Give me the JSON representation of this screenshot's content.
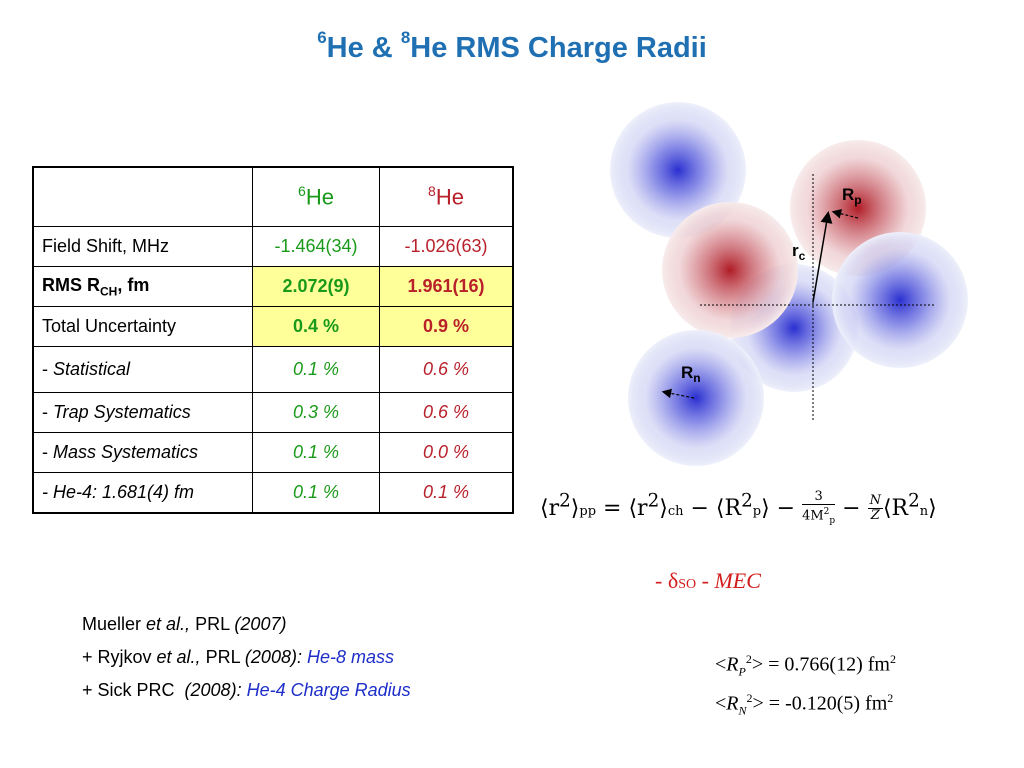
{
  "title": {
    "sup1": "6",
    "part1": "He & ",
    "sup2": "8",
    "part2": "He RMS Charge Radii"
  },
  "table": {
    "header": {
      "he6_sup": "6",
      "he6": "He",
      "he8_sup": "8",
      "he8": "He"
    },
    "rows": [
      {
        "label": "Field Shift, MHz",
        "he6": "-1.464(34)",
        "he8": "-1.026(63)"
      },
      {
        "label_pre": "RMS R",
        "label_sub": "CH",
        "label_post": ", fm",
        "he6": "2.072(9)",
        "he8": "1.961(16)"
      },
      {
        "label": "Total Uncertainty",
        "he6": "0.4 %",
        "he8": "0.9 %"
      },
      {
        "label_dash": "- ",
        "label": "Statistical",
        "he6": "0.1 %",
        "he8": "0.6 %"
      },
      {
        "label_dash": "- ",
        "label": "Trap Systematics",
        "he6": "0.3 %",
        "he8": "0.6 %"
      },
      {
        "label_dash": "- ",
        "label": "Mass Systematics",
        "he6": "0.1 %",
        "he8": "0.0 %"
      },
      {
        "label": "- He-4: 1.681(4) fm",
        "he6": "0.1 %",
        "he8": "0.1 %"
      }
    ]
  },
  "diagram": {
    "rp_main": "R",
    "rp_sub": "p",
    "rc_main": "r",
    "rc_sub": "c",
    "rn_main": "R",
    "rn_sub": "n",
    "colors": {
      "proton": "#b01c26",
      "neutron": "#2a2fd0"
    }
  },
  "formula": {
    "lhs_open": "⟨r",
    "lhs_sup": "2",
    "lhs_close": "⟩",
    "lhs_sub": "pp",
    "eq": " = ",
    "t1_open": "⟨r",
    "t1_sup": "2",
    "t1_close": "⟩",
    "t1_sub": "ch",
    "minus1": " − ",
    "t2_open": "⟨R",
    "t2_sup": "2",
    "t2_sub": "p",
    "t2_close": "⟩",
    "minus2": " − ",
    "frac1_num": "3",
    "frac1_den": "4M",
    "frac1_den_sup": "2",
    "frac1_den_sub": "p",
    "minus3": " − ",
    "frac2_num": "N",
    "frac2_den": "Z",
    "t3_open": "⟨R",
    "t3_sup": "2",
    "t3_sub": "n",
    "t3_close": "⟩"
  },
  "corrections": {
    "dash1": "- ",
    "delta": "δ",
    "delta_sub": "SO",
    "dash2": " - ",
    "mec": "MEC"
  },
  "references": [
    {
      "author": "Mueller ",
      "etal": "et al.,",
      "journal": " PRL ",
      "year": "(2007)"
    },
    {
      "prefix": "+ Ryjkov ",
      "etal": "et al.,",
      "journal": " PRL ",
      "year": "(2008):",
      "note": " He-8 mass"
    },
    {
      "prefix": "+ Sick PRC  ",
      "year": "(2008):",
      "note": " He-4 Charge Radius"
    }
  ],
  "radii": [
    {
      "open": "<",
      "sym": "R",
      "sub": "P",
      "sup": "2",
      "value": "> = 0.766(12) fm",
      "unit_sup": "2"
    },
    {
      "open": "<",
      "sym": "R",
      "sub": "N",
      "sup": "2",
      "value": "> = -0.120(5) fm",
      "unit_sup": "2"
    }
  ]
}
